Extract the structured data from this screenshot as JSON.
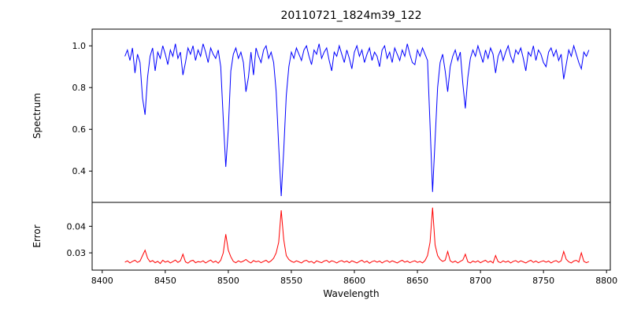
{
  "chart_data": {
    "type": "line",
    "title": "20110721_1824m39_122",
    "xlabel": "Wavelength",
    "grid": false,
    "legend": null,
    "x_range": [
      8392,
      8803
    ],
    "x_ticks": {
      "values": [
        8400,
        8450,
        8500,
        8550,
        8600,
        8650,
        8700,
        8750,
        8800
      ],
      "labels": [
        "8400",
        "8450",
        "8500",
        "8550",
        "8600",
        "8650",
        "8700",
        "8750",
        "8800"
      ]
    },
    "panels": [
      {
        "name": "spectrum",
        "ylabel": "Spectrum",
        "color": "#0000ff",
        "y_range": [
          0.25,
          1.08
        ],
        "y_ticks": {
          "values": [
            0.4,
            0.6,
            0.8,
            1.0
          ],
          "labels": [
            "0.4",
            "0.6",
            "0.8",
            "1.0"
          ]
        },
        "absorption_line_centers": [
          8434,
          8498,
          8542,
          8662,
          8688
        ],
        "x_start": 8418,
        "x_step": 2,
        "values": [
          0.95,
          0.98,
          0.93,
          0.99,
          0.87,
          0.96,
          0.92,
          0.75,
          0.67,
          0.85,
          0.95,
          0.99,
          0.88,
          0.97,
          0.94,
          1.0,
          0.96,
          0.91,
          0.98,
          0.95,
          1.01,
          0.94,
          0.97,
          0.86,
          0.92,
          0.99,
          0.96,
          1.0,
          0.93,
          0.98,
          0.95,
          1.01,
          0.97,
          0.92,
          0.99,
          0.96,
          0.94,
          0.98,
          0.9,
          0.65,
          0.42,
          0.6,
          0.88,
          0.96,
          0.99,
          0.94,
          0.97,
          0.92,
          0.78,
          0.85,
          0.97,
          0.86,
          0.99,
          0.95,
          0.92,
          0.98,
          1.0,
          0.94,
          0.97,
          0.92,
          0.78,
          0.52,
          0.28,
          0.5,
          0.76,
          0.9,
          0.97,
          0.94,
          0.99,
          0.96,
          0.93,
          0.98,
          1.0,
          0.95,
          0.91,
          0.98,
          0.96,
          1.01,
          0.94,
          0.97,
          0.99,
          0.93,
          0.88,
          0.97,
          0.95,
          1.0,
          0.96,
          0.92,
          0.98,
          0.94,
          0.89,
          0.97,
          1.0,
          0.95,
          0.98,
          0.92,
          0.96,
          0.99,
          0.93,
          0.97,
          0.95,
          0.9,
          0.98,
          1.0,
          0.94,
          0.97,
          0.92,
          0.99,
          0.96,
          0.93,
          0.98,
          0.95,
          1.01,
          0.96,
          0.92,
          0.91,
          0.98,
          0.95,
          0.99,
          0.96,
          0.93,
          0.62,
          0.3,
          0.55,
          0.8,
          0.92,
          0.96,
          0.88,
          0.78,
          0.9,
          0.95,
          0.98,
          0.93,
          0.97,
          0.82,
          0.7,
          0.85,
          0.94,
          0.98,
          0.95,
          1.0,
          0.96,
          0.92,
          0.98,
          0.94,
          0.99,
          0.96,
          0.87,
          0.95,
          0.98,
          0.93,
          0.97,
          1.0,
          0.95,
          0.92,
          0.98,
          0.96,
          0.99,
          0.94,
          0.88,
          0.97,
          0.95,
          1.0,
          0.93,
          0.98,
          0.96,
          0.92,
          0.9,
          0.97,
          0.99,
          0.95,
          0.98,
          0.93,
          0.96,
          0.84,
          0.91,
          0.98,
          0.95,
          1.0,
          0.96,
          0.92,
          0.89,
          0.97,
          0.95,
          0.98
        ]
      },
      {
        "name": "error",
        "ylabel": "Error",
        "color": "#ff0000",
        "y_range": [
          0.0235,
          0.049
        ],
        "y_ticks": {
          "values": [
            0.03,
            0.04
          ],
          "labels": [
            "0.03",
            "0.04"
          ]
        },
        "x_start": 8418,
        "x_step": 2,
        "values": [
          0.0265,
          0.027,
          0.0262,
          0.0268,
          0.0272,
          0.0264,
          0.0269,
          0.029,
          0.031,
          0.028,
          0.0266,
          0.0271,
          0.0263,
          0.0268,
          0.026,
          0.0272,
          0.0265,
          0.0269,
          0.0262,
          0.0267,
          0.0273,
          0.0264,
          0.027,
          0.0295,
          0.0266,
          0.0261,
          0.0269,
          0.0272,
          0.0263,
          0.0267,
          0.0265,
          0.027,
          0.0262,
          0.0268,
          0.0273,
          0.0264,
          0.0269,
          0.0261,
          0.0272,
          0.03,
          0.037,
          0.031,
          0.0285,
          0.0268,
          0.0263,
          0.027,
          0.0265,
          0.0269,
          0.0275,
          0.0267,
          0.0262,
          0.0271,
          0.0266,
          0.0269,
          0.0263,
          0.0268,
          0.0272,
          0.0264,
          0.027,
          0.028,
          0.03,
          0.034,
          0.046,
          0.035,
          0.029,
          0.0275,
          0.0268,
          0.0264,
          0.027,
          0.0266,
          0.0262,
          0.0269,
          0.0272,
          0.0265,
          0.0268,
          0.0261,
          0.027,
          0.0266,
          0.0263,
          0.0269,
          0.0272,
          0.0264,
          0.027,
          0.0267,
          0.0262,
          0.0268,
          0.0271,
          0.0265,
          0.0269,
          0.0263,
          0.027,
          0.0266,
          0.0262,
          0.0268,
          0.0272,
          0.0264,
          0.0269,
          0.0261,
          0.0267,
          0.027,
          0.0265,
          0.0269,
          0.0262,
          0.0268,
          0.0271,
          0.0264,
          0.027,
          0.0266,
          0.0262,
          0.0268,
          0.0272,
          0.0265,
          0.0269,
          0.0263,
          0.0267,
          0.027,
          0.0264,
          0.0268,
          0.0262,
          0.0271,
          0.029,
          0.034,
          0.047,
          0.033,
          0.029,
          0.0275,
          0.0268,
          0.0272,
          0.0305,
          0.027,
          0.0264,
          0.0269,
          0.0262,
          0.0268,
          0.0273,
          0.0295,
          0.0266,
          0.0262,
          0.0269,
          0.0265,
          0.027,
          0.0263,
          0.0268,
          0.0272,
          0.0264,
          0.0269,
          0.0262,
          0.029,
          0.0267,
          0.0263,
          0.027,
          0.0265,
          0.0269,
          0.0262,
          0.0268,
          0.0271,
          0.0264,
          0.027,
          0.0266,
          0.0262,
          0.0268,
          0.0272,
          0.0264,
          0.0269,
          0.0263,
          0.0267,
          0.027,
          0.0265,
          0.0269,
          0.0262,
          0.0268,
          0.0271,
          0.0264,
          0.027,
          0.0305,
          0.0276,
          0.0266,
          0.0262,
          0.0269,
          0.0272,
          0.0265,
          0.03,
          0.0268,
          0.0263,
          0.0267
        ]
      }
    ]
  }
}
